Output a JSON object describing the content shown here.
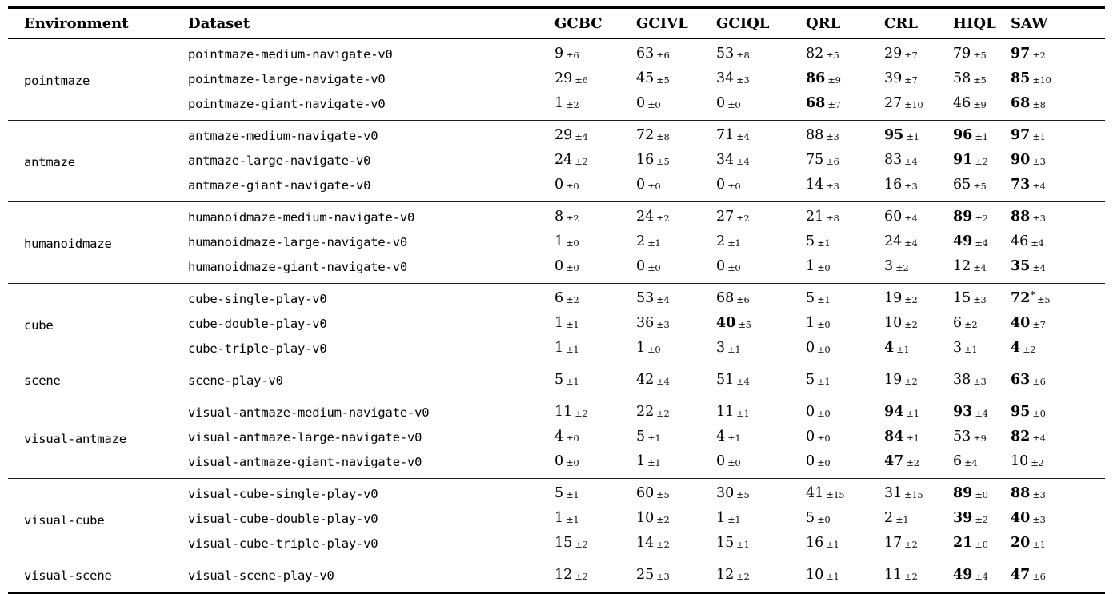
{
  "table": {
    "columns": [
      "Environment",
      "Dataset",
      "GCBC",
      "GCIVL",
      "GCIQL",
      "QRL",
      "CRL",
      "HIQL",
      "SAW"
    ],
    "sections": [
      {
        "environment": "pointmaze",
        "rows": [
          {
            "dataset": "pointmaze-medium-navigate-v0",
            "values": [
              {
                "v": 9,
                "pm": 6
              },
              {
                "v": 63,
                "pm": 6
              },
              {
                "v": 53,
                "pm": 8
              },
              {
                "v": 82,
                "pm": 5
              },
              {
                "v": 29,
                "pm": 7
              },
              {
                "v": 79,
                "pm": 5
              },
              {
                "v": 97,
                "pm": 2,
                "bold": true
              }
            ]
          },
          {
            "dataset": "pointmaze-large-navigate-v0",
            "values": [
              {
                "v": 29,
                "pm": 6
              },
              {
                "v": 45,
                "pm": 5
              },
              {
                "v": 34,
                "pm": 3
              },
              {
                "v": 86,
                "pm": 9,
                "bold": true
              },
              {
                "v": 39,
                "pm": 7
              },
              {
                "v": 58,
                "pm": 5
              },
              {
                "v": 85,
                "pm": 10,
                "bold": true
              }
            ]
          },
          {
            "dataset": "pointmaze-giant-navigate-v0",
            "values": [
              {
                "v": 1,
                "pm": 2
              },
              {
                "v": 0,
                "pm": 0
              },
              {
                "v": 0,
                "pm": 0
              },
              {
                "v": 68,
                "pm": 7,
                "bold": true
              },
              {
                "v": 27,
                "pm": 10
              },
              {
                "v": 46,
                "pm": 9
              },
              {
                "v": 68,
                "pm": 8,
                "bold": true
              }
            ]
          }
        ]
      },
      {
        "environment": "antmaze",
        "rows": [
          {
            "dataset": "antmaze-medium-navigate-v0",
            "values": [
              {
                "v": 29,
                "pm": 4
              },
              {
                "v": 72,
                "pm": 8
              },
              {
                "v": 71,
                "pm": 4
              },
              {
                "v": 88,
                "pm": 3
              },
              {
                "v": 95,
                "pm": 1,
                "bold": true
              },
              {
                "v": 96,
                "pm": 1,
                "bold": true
              },
              {
                "v": 97,
                "pm": 1,
                "bold": true
              }
            ]
          },
          {
            "dataset": "antmaze-large-navigate-v0",
            "values": [
              {
                "v": 24,
                "pm": 2
              },
              {
                "v": 16,
                "pm": 5
              },
              {
                "v": 34,
                "pm": 4
              },
              {
                "v": 75,
                "pm": 6
              },
              {
                "v": 83,
                "pm": 4
              },
              {
                "v": 91,
                "pm": 2,
                "bold": true
              },
              {
                "v": 90,
                "pm": 3,
                "bold": true
              }
            ]
          },
          {
            "dataset": "antmaze-giant-navigate-v0",
            "values": [
              {
                "v": 0,
                "pm": 0
              },
              {
                "v": 0,
                "pm": 0
              },
              {
                "v": 0,
                "pm": 0
              },
              {
                "v": 14,
                "pm": 3
              },
              {
                "v": 16,
                "pm": 3
              },
              {
                "v": 65,
                "pm": 5
              },
              {
                "v": 73,
                "pm": 4,
                "bold": true
              }
            ]
          }
        ]
      },
      {
        "environment": "humanoidmaze",
        "rows": [
          {
            "dataset": "humanoidmaze-medium-navigate-v0",
            "values": [
              {
                "v": 8,
                "pm": 2
              },
              {
                "v": 24,
                "pm": 2
              },
              {
                "v": 27,
                "pm": 2
              },
              {
                "v": 21,
                "pm": 8
              },
              {
                "v": 60,
                "pm": 4
              },
              {
                "v": 89,
                "pm": 2,
                "bold": true
              },
              {
                "v": 88,
                "pm": 3,
                "bold": true
              }
            ]
          },
          {
            "dataset": "humanoidmaze-large-navigate-v0",
            "values": [
              {
                "v": 1,
                "pm": 0
              },
              {
                "v": 2,
                "pm": 1
              },
              {
                "v": 2,
                "pm": 1
              },
              {
                "v": 5,
                "pm": 1
              },
              {
                "v": 24,
                "pm": 4
              },
              {
                "v": 49,
                "pm": 4,
                "bold": true
              },
              {
                "v": 46,
                "pm": 4
              }
            ]
          },
          {
            "dataset": "humanoidmaze-giant-navigate-v0",
            "values": [
              {
                "v": 0,
                "pm": 0
              },
              {
                "v": 0,
                "pm": 0
              },
              {
                "v": 0,
                "pm": 0
              },
              {
                "v": 1,
                "pm": 0
              },
              {
                "v": 3,
                "pm": 2
              },
              {
                "v": 12,
                "pm": 4
              },
              {
                "v": 35,
                "pm": 4,
                "bold": true
              }
            ]
          }
        ]
      },
      {
        "environment": "cube",
        "rows": [
          {
            "dataset": "cube-single-play-v0",
            "values": [
              {
                "v": 6,
                "pm": 2
              },
              {
                "v": 53,
                "pm": 4
              },
              {
                "v": 68,
                "pm": 6
              },
              {
                "v": 5,
                "pm": 1
              },
              {
                "v": 19,
                "pm": 2
              },
              {
                "v": 15,
                "pm": 3
              },
              {
                "v": 72,
                "pm": 5,
                "bold": true,
                "sup": "*"
              }
            ]
          },
          {
            "dataset": "cube-double-play-v0",
            "values": [
              {
                "v": 1,
                "pm": 1
              },
              {
                "v": 36,
                "pm": 3
              },
              {
                "v": 40,
                "pm": 5,
                "bold": true
              },
              {
                "v": 1,
                "pm": 0
              },
              {
                "v": 10,
                "pm": 2
              },
              {
                "v": 6,
                "pm": 2
              },
              {
                "v": 40,
                "pm": 7,
                "bold": true
              }
            ]
          },
          {
            "dataset": "cube-triple-play-v0",
            "values": [
              {
                "v": 1,
                "pm": 1
              },
              {
                "v": 1,
                "pm": 0
              },
              {
                "v": 3,
                "pm": 1
              },
              {
                "v": 0,
                "pm": 0
              },
              {
                "v": 4,
                "pm": 1,
                "bold": true
              },
              {
                "v": 3,
                "pm": 1
              },
              {
                "v": 4,
                "pm": 2,
                "bold": true
              }
            ]
          }
        ]
      },
      {
        "environment": "scene",
        "rows": [
          {
            "dataset": "scene-play-v0",
            "values": [
              {
                "v": 5,
                "pm": 1
              },
              {
                "v": 42,
                "pm": 4
              },
              {
                "v": 51,
                "pm": 4
              },
              {
                "v": 5,
                "pm": 1
              },
              {
                "v": 19,
                "pm": 2
              },
              {
                "v": 38,
                "pm": 3
              },
              {
                "v": 63,
                "pm": 6,
                "bold": true
              }
            ]
          }
        ]
      },
      {
        "environment": "visual-antmaze",
        "rows": [
          {
            "dataset": "visual-antmaze-medium-navigate-v0",
            "values": [
              {
                "v": 11,
                "pm": 2
              },
              {
                "v": 22,
                "pm": 2
              },
              {
                "v": 11,
                "pm": 1
              },
              {
                "v": 0,
                "pm": 0
              },
              {
                "v": 94,
                "pm": 1,
                "bold": true
              },
              {
                "v": 93,
                "pm": 4,
                "bold": true
              },
              {
                "v": 95,
                "pm": 0,
                "bold": true
              }
            ]
          },
          {
            "dataset": "visual-antmaze-large-navigate-v0",
            "values": [
              {
                "v": 4,
                "pm": 0
              },
              {
                "v": 5,
                "pm": 1
              },
              {
                "v": 4,
                "pm": 1
              },
              {
                "v": 0,
                "pm": 0
              },
              {
                "v": 84,
                "pm": 1,
                "bold": true
              },
              {
                "v": 53,
                "pm": 9
              },
              {
                "v": 82,
                "pm": 4,
                "bold": true
              }
            ]
          },
          {
            "dataset": "visual-antmaze-giant-navigate-v0",
            "values": [
              {
                "v": 0,
                "pm": 0
              },
              {
                "v": 1,
                "pm": 1
              },
              {
                "v": 0,
                "pm": 0
              },
              {
                "v": 0,
                "pm": 0
              },
              {
                "v": 47,
                "pm": 2,
                "bold": true
              },
              {
                "v": 6,
                "pm": 4
              },
              {
                "v": 10,
                "pm": 2
              }
            ]
          }
        ]
      },
      {
        "environment": "visual-cube",
        "rows": [
          {
            "dataset": "visual-cube-single-play-v0",
            "values": [
              {
                "v": 5,
                "pm": 1
              },
              {
                "v": 60,
                "pm": 5
              },
              {
                "v": 30,
                "pm": 5
              },
              {
                "v": 41,
                "pm": 15
              },
              {
                "v": 31,
                "pm": 15
              },
              {
                "v": 89,
                "pm": 0,
                "bold": true
              },
              {
                "v": 88,
                "pm": 3,
                "bold": true
              }
            ]
          },
          {
            "dataset": "visual-cube-double-play-v0",
            "values": [
              {
                "v": 1,
                "pm": 1
              },
              {
                "v": 10,
                "pm": 2
              },
              {
                "v": 1,
                "pm": 1
              },
              {
                "v": 5,
                "pm": 0
              },
              {
                "v": 2,
                "pm": 1
              },
              {
                "v": 39,
                "pm": 2,
                "bold": true
              },
              {
                "v": 40,
                "pm": 3,
                "bold": true
              }
            ]
          },
          {
            "dataset": "visual-cube-triple-play-v0",
            "values": [
              {
                "v": 15,
                "pm": 2
              },
              {
                "v": 14,
                "pm": 2
              },
              {
                "v": 15,
                "pm": 1
              },
              {
                "v": 16,
                "pm": 1
              },
              {
                "v": 17,
                "pm": 2
              },
              {
                "v": 21,
                "pm": 0,
                "bold": true
              },
              {
                "v": 20,
                "pm": 1,
                "bold": true
              }
            ]
          }
        ]
      },
      {
        "environment": "visual-scene",
        "rows": [
          {
            "dataset": "visual-scene-play-v0",
            "values": [
              {
                "v": 12,
                "pm": 2
              },
              {
                "v": 25,
                "pm": 3
              },
              {
                "v": 12,
                "pm": 2
              },
              {
                "v": 10,
                "pm": 1
              },
              {
                "v": 11,
                "pm": 2
              },
              {
                "v": 49,
                "pm": 4,
                "bold": true
              },
              {
                "v": 47,
                "pm": 6,
                "bold": true
              }
            ]
          }
        ]
      }
    ]
  }
}
